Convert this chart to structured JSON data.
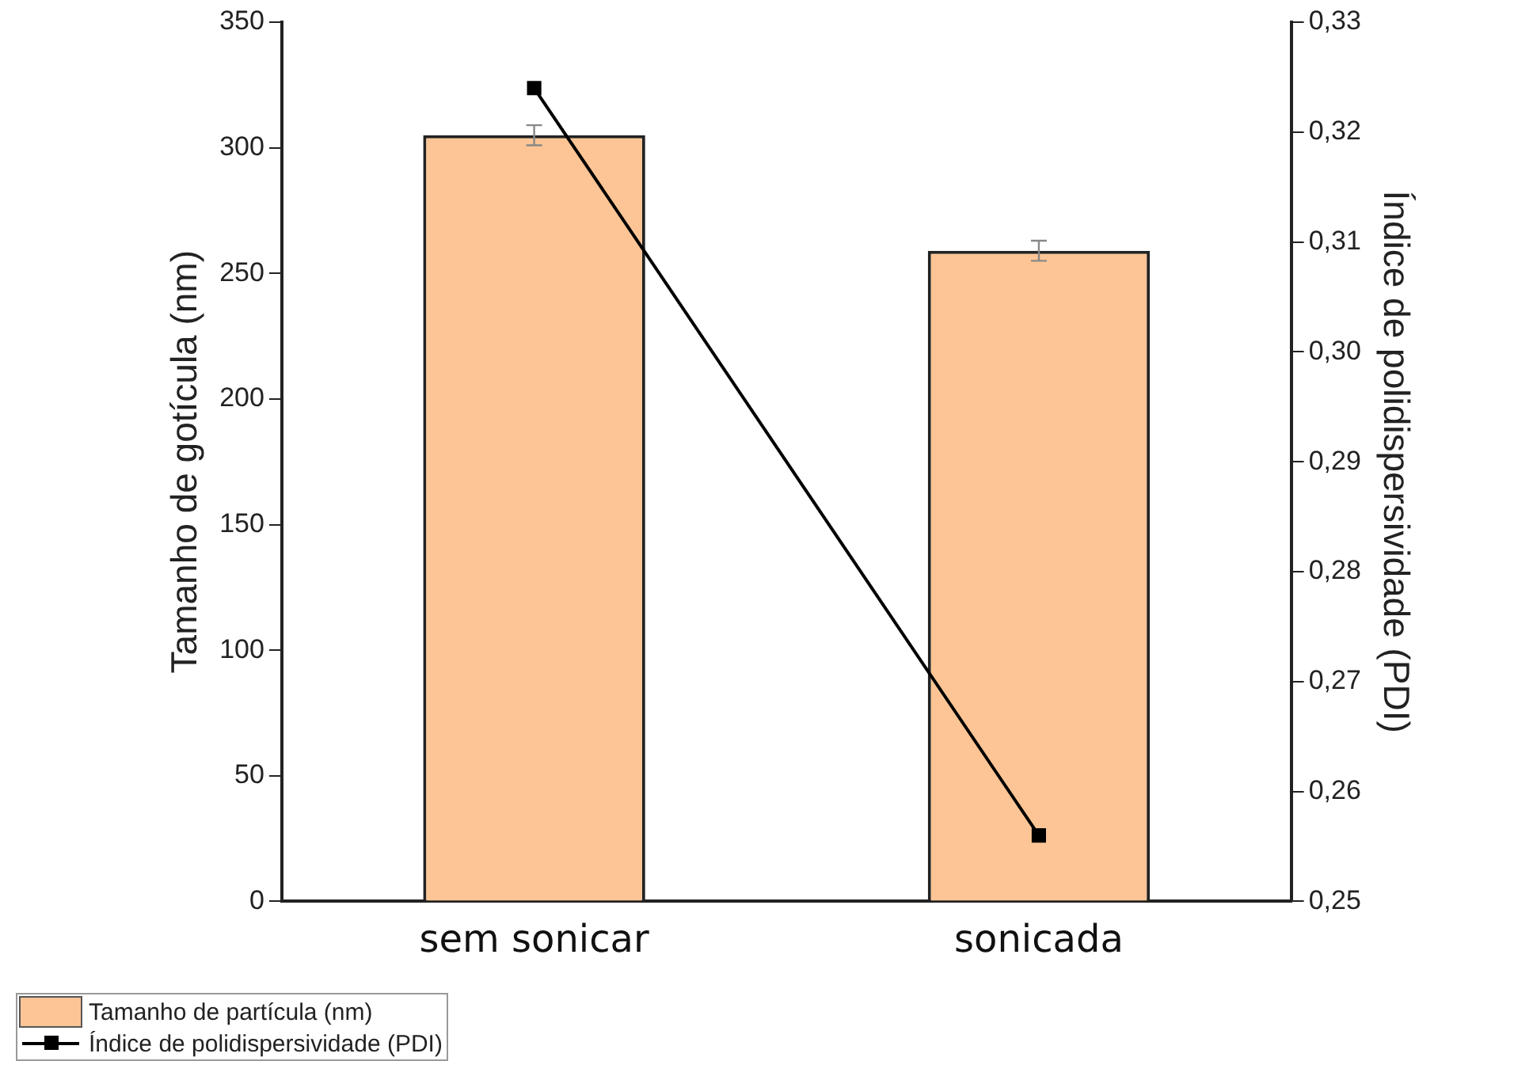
{
  "chart_data": {
    "type": "bar",
    "categories": [
      "sem sonicar",
      "sonicada"
    ],
    "ylabel": "Tamanho de gotícula (nm)",
    "y2label": "Índice de polidispersividade (PDI)",
    "series": [
      {
        "name": "Tamanho de partícula (nm)",
        "color": "#fdc595",
        "values": [
          305,
          259
        ],
        "errors": [
          4,
          4
        ]
      },
      {
        "name": "Índice de polidispersividade (PDI)",
        "type": "line",
        "axis": "y2",
        "color": "#000000",
        "values": [
          0.324,
          0.256
        ],
        "marker": "square",
        "line_style": "solid"
      }
    ],
    "ylim": [
      0,
      350
    ],
    "yticks": [
      0,
      50,
      100,
      150,
      200,
      250,
      300,
      350
    ],
    "y2lim": [
      0.25,
      0.33
    ],
    "y2ticks": [
      {
        "value": 0.25,
        "label": "0,25"
      },
      {
        "value": 0.26,
        "label": "0,26"
      },
      {
        "value": 0.27,
        "label": "0,27"
      },
      {
        "value": 0.28,
        "label": "0,28"
      },
      {
        "value": 0.29,
        "label": "0,29"
      },
      {
        "value": 0.3,
        "label": "0,30"
      },
      {
        "value": 0.31,
        "label": "0,31"
      },
      {
        "value": 0.32,
        "label": "0,32"
      },
      {
        "value": 0.33,
        "label": "0,33"
      }
    ],
    "grid": false,
    "legend": "bottom left"
  }
}
